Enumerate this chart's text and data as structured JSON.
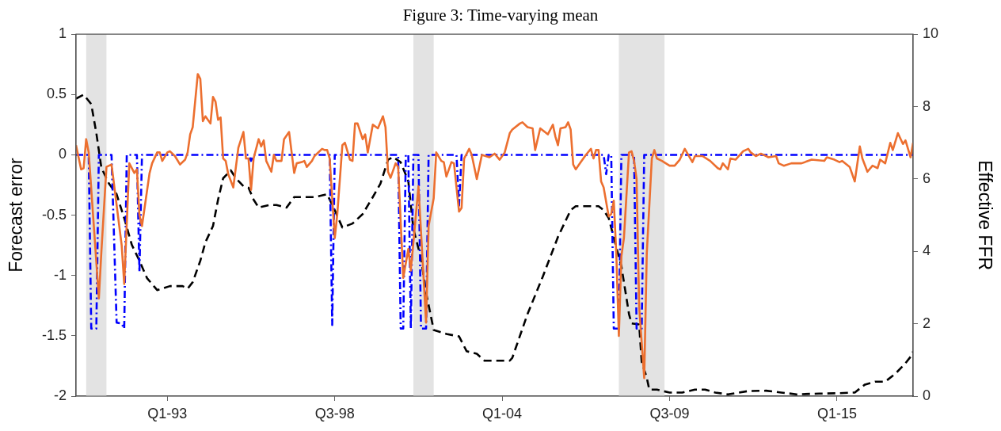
{
  "chart_data": {
    "type": "line",
    "title": "Figure 3: Time-varying mean",
    "ylabel": "Forecast error",
    "y2label": "Effective FFR",
    "xlim": [
      "1990-01",
      "2017-07"
    ],
    "xticks": [
      {
        "value": "1993-01",
        "label": "Q1-93"
      },
      {
        "value": "1998-07",
        "label": "Q3-98"
      },
      {
        "value": "2004-01",
        "label": "Q1-04"
      },
      {
        "value": "2009-07",
        "label": "Q3-09"
      },
      {
        "value": "2015-01",
        "label": "Q1-15"
      }
    ],
    "ylim": [
      -2,
      1
    ],
    "yticks": [
      -2,
      -1.5,
      -1,
      -0.5,
      0,
      0.5,
      1
    ],
    "y2lim": [
      0,
      10
    ],
    "y2ticks": [
      0,
      2,
      4,
      6,
      8,
      10
    ],
    "grid": false,
    "legend": false,
    "marker": "none",
    "bands": [
      {
        "axis": "x",
        "from": "1990-05",
        "to": "1991-01",
        "color": "#e3e3e3"
      },
      {
        "axis": "x",
        "from": "2001-02",
        "to": "2001-10",
        "color": "#e3e3e3"
      },
      {
        "axis": "x",
        "from": "2007-11",
        "to": "2009-05",
        "color": "#e3e3e3"
      }
    ],
    "series": [
      {
        "color": "#ec6f2f",
        "line_style": "solid",
        "x": [
          "1990-01",
          "1990-03",
          "1990-04",
          "1990-05",
          "1990-06",
          "1990-10",
          "1990-11",
          "1991-01",
          "1991-03",
          "1991-07",
          "1991-08",
          "1991-10",
          "1991-12",
          "1992-01",
          "1992-02",
          "1992-03",
          "1992-06",
          "1992-07",
          "1992-09",
          "1992-10",
          "1992-11",
          "1993-01",
          "1993-02",
          "1993-04",
          "1993-06",
          "1993-08",
          "1993-09",
          "1993-10",
          "1993-11",
          "1994-01",
          "1994-02",
          "1994-03",
          "1994-04",
          "1994-06",
          "1994-07",
          "1994-08",
          "1994-09",
          "1994-10",
          "1994-11",
          "1994-12",
          "1995-01",
          "1995-03",
          "1995-05",
          "1995-07",
          "1995-08",
          "1995-09",
          "1995-10",
          "1995-11",
          "1996-01",
          "1996-02",
          "1996-03",
          "1996-04",
          "1996-06",
          "1996-07",
          "1996-08",
          "1996-10",
          "1996-11",
          "1997-01",
          "1997-02",
          "1997-03",
          "1997-04",
          "1997-06",
          "1997-07",
          "1997-08",
          "1997-10",
          "1997-11",
          "1998-02",
          "1998-03",
          "1998-04",
          "1998-05",
          "1998-07",
          "1998-08",
          "1998-10",
          "1998-11",
          "1999-01",
          "1999-02",
          "1999-03",
          "1999-04",
          "1999-06",
          "1999-07",
          "1999-08",
          "1999-10",
          "1999-12",
          "2000-02",
          "2000-03",
          "2000-04",
          "2000-05",
          "2000-07",
          "2000-08",
          "2000-10",
          "2000-12",
          "2001-01",
          "2001-04",
          "2001-07",
          "2001-08",
          "2001-10",
          "2001-11",
          "2002-01",
          "2002-02",
          "2002-03",
          "2002-05",
          "2002-06",
          "2002-08",
          "2002-09",
          "2002-10",
          "2002-12",
          "2003-01",
          "2003-03",
          "2003-05",
          "2003-08",
          "2003-10",
          "2003-12",
          "2004-02",
          "2004-04",
          "2004-05",
          "2004-08",
          "2004-09",
          "2004-11",
          "2005-01",
          "2005-02",
          "2005-04",
          "2005-07",
          "2005-09",
          "2005-10",
          "2005-11",
          "2005-12",
          "2006-02",
          "2006-03",
          "2006-04",
          "2006-05",
          "2006-06",
          "2006-08",
          "2006-10",
          "2006-12",
          "2007-01",
          "2007-02",
          "2007-03",
          "2007-04",
          "2007-05",
          "2007-07",
          "2007-08",
          "2007-09",
          "2007-10",
          "2007-11",
          "2007-12",
          "2008-01",
          "2008-03",
          "2008-04",
          "2008-05",
          "2008-06",
          "2008-07",
          "2008-09",
          "2008-10",
          "2008-12",
          "2009-01",
          "2009-02",
          "2009-04",
          "2009-07",
          "2009-09",
          "2009-11",
          "2010-01",
          "2010-04",
          "2010-05",
          "2010-08",
          "2010-11",
          "2011-02",
          "2011-03",
          "2011-04",
          "2011-06",
          "2011-07",
          "2011-09",
          "2011-12",
          "2012-02",
          "2012-03",
          "2012-05",
          "2012-07",
          "2012-10",
          "2013-01",
          "2013-02",
          "2013-04",
          "2013-07",
          "2013-09",
          "2013-11",
          "2014-03",
          "2014-08",
          "2014-09",
          "2014-12",
          "2015-02",
          "2015-03",
          "2015-06",
          "2015-08",
          "2015-10",
          "2015-11",
          "2016-01",
          "2016-03",
          "2016-05",
          "2016-06",
          "2016-08",
          "2016-10",
          "2016-11",
          "2017-01",
          "2017-03",
          "2017-04",
          "2017-06",
          "2017-07"
        ],
        "values": [
          0.08,
          -0.12,
          -0.11,
          0.13,
          0.02,
          -1.19,
          -0.8,
          -0.1,
          -0.08,
          -0.75,
          -1.07,
          -0.07,
          -0.15,
          -0.12,
          -0.5,
          -0.59,
          -0.15,
          -0.07,
          0.02,
          0.02,
          -0.05,
          0.02,
          0.03,
          -0.01,
          -0.08,
          -0.04,
          0.02,
          0.17,
          0.23,
          0.67,
          0.63,
          0.28,
          0.32,
          0.26,
          0.48,
          0.44,
          0.29,
          0.31,
          -0.03,
          -0.05,
          -0.16,
          -0.27,
          0.06,
          0.19,
          -0.03,
          -0.03,
          -0.29,
          -0.03,
          0.13,
          0.07,
          0.12,
          -0.05,
          -0.14,
          0,
          -0.05,
          -0.05,
          0.13,
          0.19,
          0.02,
          -0.15,
          -0.07,
          -0.06,
          -0.05,
          -0.1,
          -0.05,
          -0.01,
          0.05,
          0.04,
          0.04,
          -0.03,
          -0.69,
          -0.49,
          0.08,
          0.1,
          -0.04,
          -0.05,
          0.26,
          0.26,
          0.13,
          0.17,
          0.02,
          0.25,
          0.22,
          0.32,
          0.23,
          -0.14,
          -0.19,
          -0.07,
          -0.1,
          -1.02,
          -0.78,
          -0.96,
          -0.26,
          -1.39,
          -0.59,
          -0.36,
          0.02,
          -0.05,
          -0.06,
          -0.18,
          -0.06,
          -0.07,
          -0.47,
          -0.44,
          -0.03,
          0.05,
          0,
          -0.2,
          0,
          -0.02,
          0.01,
          -0.04,
          0.02,
          0.18,
          0.21,
          0.26,
          0.27,
          0.23,
          0.22,
          0.04,
          0.22,
          0.17,
          0.25,
          0.15,
          0.08,
          0.22,
          0.23,
          0.27,
          0.21,
          -0.08,
          -0.12,
          -0.06,
          0,
          0.05,
          -0.03,
          0.04,
          0.04,
          -0.22,
          -0.27,
          -0.51,
          -0.49,
          -0.38,
          -0.82,
          -1.5,
          -0.84,
          -0.69,
          0.02,
          0.03,
          -0.05,
          -0.2,
          -1.26,
          -1.85,
          -0.82,
          -0.03,
          0.04,
          -0.03,
          -0.05,
          -0.09,
          -0.09,
          -0.04,
          0.05,
          -0.06,
          -0.01,
          -0.01,
          -0.05,
          -0.11,
          -0.12,
          -0.07,
          -0.12,
          -0.03,
          -0.04,
          0.03,
          0.05,
          0.02,
          -0.01,
          0.01,
          -0.02,
          -0.01,
          -0.07,
          -0.09,
          -0.07,
          -0.07,
          -0.07,
          -0.04,
          -0.05,
          -0.02,
          -0.04,
          -0.06,
          -0.05,
          -0.1,
          -0.22,
          0.07,
          -0.03,
          -0.14,
          -0.09,
          -0.11,
          -0.04,
          -0.07,
          0.1,
          0.04,
          0.18,
          0.09,
          0.12,
          -0.02,
          0.1
        ]
      },
      {
        "color": "#0000ff",
        "line_style": "dashdot",
        "x": [
          "1990-01",
          "1990-06",
          "1990-07",
          "1990-09",
          "1990-10",
          "1991-03",
          "1991-05",
          "1991-07",
          "1991-08",
          "1991-09",
          "1992-01",
          "1992-02",
          "1992-03",
          "1995-09",
          "1995-10",
          "1995-11",
          "1998-05",
          "1998-06",
          "1998-07",
          "2000-08",
          "2000-09",
          "2000-10",
          "2000-11",
          "2000-12",
          "2001-01",
          "2001-02",
          "2001-04",
          "2001-05",
          "2001-07",
          "2001-08",
          "2002-07",
          "2002-08",
          "2002-09",
          "2007-05",
          "2007-06",
          "2007-07",
          "2007-08",
          "2007-09",
          "2007-11",
          "2007-12",
          "2008-05",
          "2008-06",
          "2008-08",
          "2008-09",
          "2017-07"
        ],
        "values": [
          0,
          0,
          -1.44,
          -1.44,
          0,
          0,
          -1.39,
          -1.4,
          -1.44,
          0,
          0,
          -0.97,
          0,
          0,
          -0.05,
          0,
          0,
          -1.41,
          0,
          0,
          -1.44,
          -1.44,
          0,
          0,
          -1.44,
          0,
          0,
          -1.44,
          -1.44,
          0,
          0,
          -0.42,
          0,
          0,
          -0.16,
          0,
          0,
          -1.44,
          -1.44,
          0,
          0,
          -1.44,
          -1.44,
          0,
          0
        ]
      },
      {
        "color": "#000000",
        "line_style": "dashed",
        "axis": "y2",
        "x": [
          "1990-01",
          "1990-04",
          "1990-07",
          "1990-09",
          "1990-11",
          "1991-02",
          "1991-05",
          "1991-08",
          "1991-11",
          "1992-02",
          "1992-05",
          "1992-09",
          "1993-02",
          "1993-07",
          "1993-09",
          "1993-11",
          "1994-02",
          "1994-04",
          "1994-07",
          "1994-09",
          "1994-11",
          "1995-02",
          "1995-04",
          "1995-07",
          "1995-09",
          "1995-11",
          "1996-01",
          "1996-05",
          "1996-08",
          "1996-12",
          "1997-03",
          "1997-07",
          "1997-11",
          "1998-04",
          "1998-07",
          "1998-10",
          "1999-02",
          "1999-06",
          "1999-10",
          "2000-01",
          "2000-04",
          "2000-06",
          "2000-09",
          "2000-12",
          "2001-02",
          "2001-05",
          "2001-07",
          "2001-10",
          "2002-03",
          "2002-08",
          "2002-11",
          "2003-03",
          "2003-06",
          "2003-11",
          "2004-04",
          "2004-05",
          "2004-11",
          "2005-05",
          "2005-11",
          "2006-04",
          "2006-06",
          "2007-03",
          "2007-05",
          "2007-07",
          "2007-10",
          "2007-12",
          "2008-03",
          "2008-04",
          "2008-07",
          "2008-08",
          "2008-10",
          "2008-11",
          "2009-02",
          "2009-07",
          "2009-12",
          "2010-05",
          "2010-09",
          "2011-01",
          "2011-06",
          "2012-02",
          "2012-09",
          "2013-03",
          "2013-09",
          "2014-06",
          "2015-01",
          "2015-08",
          "2015-12",
          "2016-04",
          "2016-08",
          "2016-12",
          "2017-04",
          "2017-06",
          "2017-07"
        ],
        "values": [
          8.22,
          8.33,
          8.07,
          7.27,
          6.31,
          5.87,
          5.58,
          4.92,
          4.18,
          3.74,
          3.26,
          2.93,
          3.04,
          3.04,
          2.97,
          3.15,
          3.74,
          4.25,
          4.7,
          5.43,
          6.02,
          6.24,
          6.02,
          5.8,
          5.76,
          5.43,
          5.21,
          5.28,
          5.28,
          5.21,
          5.5,
          5.5,
          5.5,
          5.58,
          5.14,
          4.66,
          4.77,
          5.03,
          5.5,
          5.87,
          6.53,
          6.61,
          6.46,
          5.94,
          4.62,
          3.81,
          2.86,
          1.83,
          1.72,
          1.65,
          1.24,
          1.17,
          0.98,
          0.98,
          0.98,
          1.06,
          2.27,
          3.3,
          4.4,
          5.14,
          5.25,
          5.25,
          5.14,
          4.92,
          4.11,
          3.59,
          2.27,
          2.01,
          1.98,
          0.95,
          0.51,
          0.18,
          0.18,
          0.1,
          0.1,
          0.18,
          0.18,
          0.1,
          0.05,
          0.14,
          0.15,
          0.1,
          0.05,
          0.07,
          0.08,
          0.1,
          0.32,
          0.4,
          0.4,
          0.62,
          0.91,
          1.09,
          1.23
        ]
      }
    ]
  }
}
